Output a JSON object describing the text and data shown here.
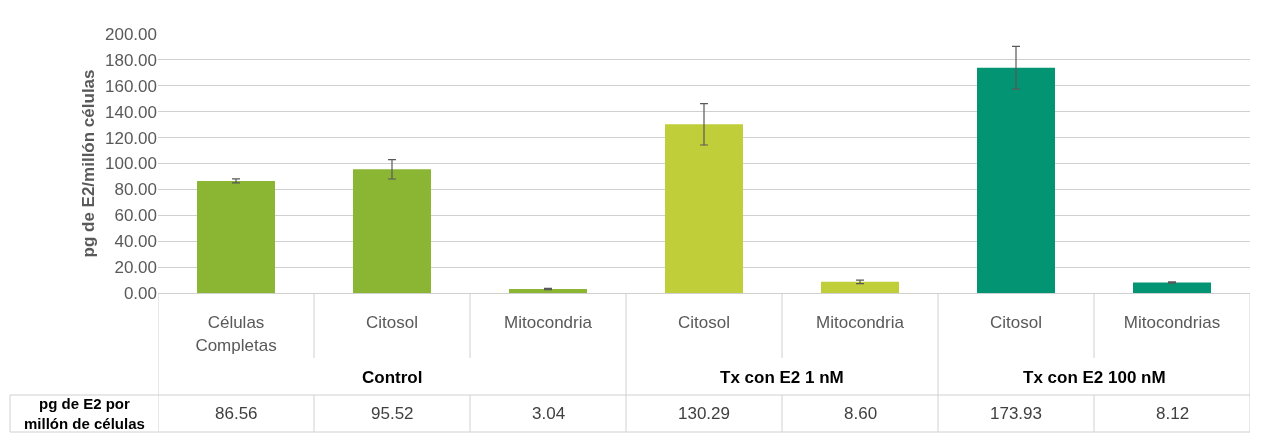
{
  "chart_data": {
    "type": "bar",
    "ylabel": "pg de E2/millón células",
    "categories": [
      "Células Completas",
      "Citosol",
      "Mitocondria",
      "Citosol",
      "Mitocondria",
      "Citosol",
      "Mitocondrias"
    ],
    "values": [
      86.56,
      95.52,
      3.04,
      130.29,
      8.6,
      173.93,
      8.12
    ],
    "value_labels": [
      "86.56",
      "95.52",
      "3.04",
      "130.29",
      "8.60",
      "173.93",
      "8.12"
    ],
    "errors": [
      1.5,
      7.5,
      0.5,
      16,
      1.3,
      16.5,
      0.5
    ],
    "colors": [
      "#8bb634",
      "#8bb634",
      "#8bb634",
      "#c0ce3a",
      "#c0ce3a",
      "#039473",
      "#039473"
    ],
    "ylim": [
      0,
      200
    ],
    "yticks": [
      {
        "value": 0,
        "label": "0.00"
      },
      {
        "value": 20,
        "label": "20.00"
      },
      {
        "value": 40,
        "label": "40.00"
      },
      {
        "value": 60,
        "label": "60.00"
      },
      {
        "value": 80,
        "label": "80.00"
      },
      {
        "value": 100,
        "label": "100.00"
      },
      {
        "value": 120,
        "label": "120.00"
      },
      {
        "value": 140,
        "label": "140.00"
      },
      {
        "value": 160,
        "label": "160.00"
      },
      {
        "value": 180,
        "label": "180.00"
      },
      {
        "value": 200,
        "label": "200.00"
      }
    ],
    "grid": "y",
    "annotations": [
      "Control",
      "Tx con E2 1 nM",
      "Tx con E2 100 nM",
      "pg de E2 por millón de células"
    ]
  }
}
